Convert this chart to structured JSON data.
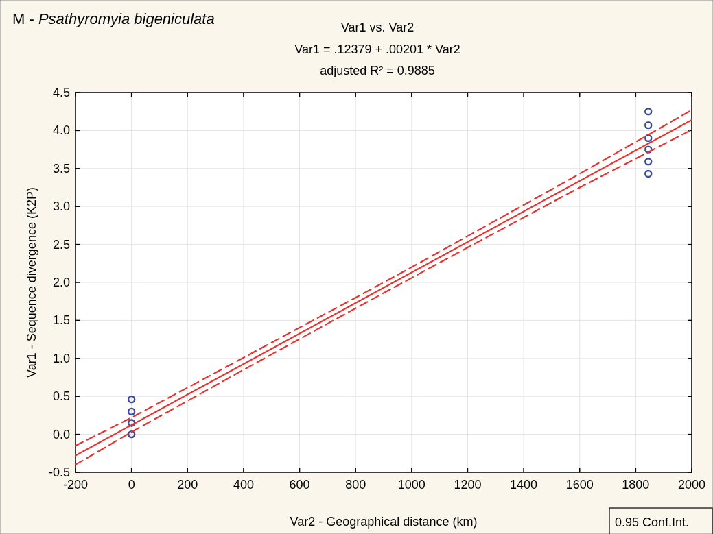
{
  "chart_data": {
    "type": "scatter",
    "title": "Var1 vs. Var2",
    "xlabel": "Var2 - Geographical distance (km)",
    "ylabel": "Var1 - Sequence divergence (K2P)",
    "annotations": [
      "M - Psathyromyia bigeniculata",
      "Var1 = .12379 + .00201 * Var2",
      "adjusted R² = 0.9885",
      "0.95 Conf.Int."
    ],
    "xlim": [
      -200,
      2000
    ],
    "xticks": [
      -200,
      0,
      200,
      400,
      600,
      800,
      1000,
      1200,
      1400,
      1600,
      1800,
      2000
    ],
    "ylim": [
      -0.5,
      4.5
    ],
    "yticks": [
      -0.5,
      {
        "value": 0,
        "label": "0.0"
      },
      0.5,
      {
        "value": 1,
        "label": "1.0"
      },
      1.5,
      {
        "value": 2,
        "label": "2.0"
      },
      2.5,
      {
        "value": 3,
        "label": "3.0"
      },
      3.5,
      {
        "value": 4,
        "label": "4.0"
      },
      4.5
    ],
    "grid": true,
    "series": [
      {
        "color": "#3b4aa0",
        "marker": "circle",
        "x": [
          0,
          0,
          0,
          0,
          1845,
          1845,
          1845,
          1845,
          1845,
          1845
        ],
        "values": [
          0.46,
          0.3,
          0.15,
          0.0,
          4.25,
          4.07,
          3.9,
          3.75,
          3.59,
          3.43
        ]
      },
      {
        "type": "line",
        "color": "#e8322d",
        "line_style": "solid",
        "x": [
          -200,
          2000
        ],
        "values": [
          -0.28,
          4.14
        ]
      },
      {
        "type": "line",
        "color": "#e8322d",
        "line_style": "dashed",
        "x": [
          -200,
          0,
          400,
          800,
          1000,
          1200,
          1600,
          2000
        ],
        "values": [
          -0.15,
          0.22,
          1.01,
          1.8,
          2.2,
          2.61,
          3.43,
          4.27
        ]
      },
      {
        "type": "line",
        "color": "#e8322d",
        "line_style": "dashed",
        "x": [
          -200,
          0,
          400,
          800,
          1000,
          1200,
          1600,
          2000
        ],
        "values": [
          -0.4,
          0.03,
          0.85,
          1.66,
          2.06,
          2.46,
          3.25,
          4.01
        ]
      }
    ]
  }
}
